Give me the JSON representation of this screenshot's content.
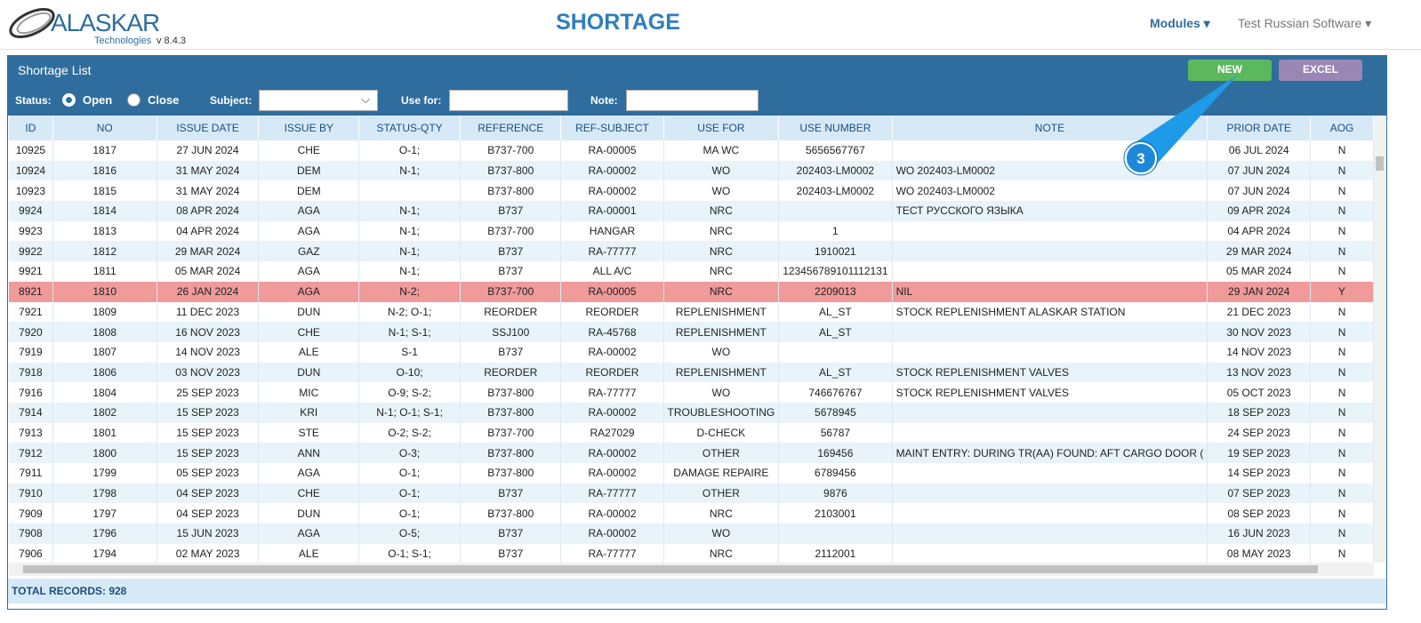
{
  "header": {
    "logo_name": "ALASKAR",
    "logo_sub": "Technologies",
    "version": "v 8.4.3",
    "title": "SHORTAGE",
    "nav": [
      "Modules",
      "Test Russian Software"
    ]
  },
  "panel": {
    "title": "Shortage List",
    "buttons": [
      "NEW",
      "EXCEL"
    ]
  },
  "filters": {
    "status_label": "Status:",
    "options": [
      "Open",
      "Close"
    ],
    "selected_option": 0,
    "subject_label": "Subject:",
    "use_for_label": "Use for:",
    "note_label": "Note:"
  },
  "table": {
    "columns": [
      "ID",
      "NO",
      "ISSUE DATE",
      "ISSUE BY",
      "STATUS-QTY",
      "REFERENCE",
      "REF-SUBJECT",
      "USE FOR",
      "USE NUMBER",
      "NOTE",
      "PRIOR DATE",
      "AOG"
    ],
    "rows": [
      {
        "cells": [
          "10925",
          "1817",
          "27 JUN 2024",
          "CHE",
          "O-1;",
          "B737-700",
          "RA-00005",
          "MA WC",
          "5656567767",
          null,
          "06 JUL 2024",
          "N"
        ]
      },
      {
        "cells": [
          "10924",
          "1816",
          "31 MAY 2024",
          "DEM",
          "N-1;",
          "B737-800",
          "RA-00002",
          "WO",
          "202403-LM0002",
          "WO 202403-LM0002",
          "07 JUN 2024",
          "N"
        ]
      },
      {
        "cells": [
          "10923",
          "1815",
          "31 MAY 2024",
          "DEM",
          null,
          "B737-800",
          "RA-00002",
          "WO",
          "202403-LM0002",
          "WO 202403-LM0002",
          "07 JUN 2024",
          "N"
        ]
      },
      {
        "cells": [
          "9924",
          "1814",
          "08 APR 2024",
          "AGA",
          "N-1;",
          "B737",
          "RA-00001",
          "NRC",
          null,
          "ТЕСТ РУССКОГО ЯЗЫКА",
          "09 APR 2024",
          "N"
        ]
      },
      {
        "cells": [
          "9923",
          "1813",
          "04 APR 2024",
          "AGA",
          "N-1;",
          "B737-700",
          "HANGAR",
          "NRC",
          "1",
          null,
          "04 APR 2024",
          "N"
        ]
      },
      {
        "cells": [
          "9922",
          "1812",
          "29 MAR 2024",
          "GAZ",
          "N-1;",
          "B737",
          "RA-77777",
          "NRC",
          "1910021",
          null,
          "29 MAR 2024",
          "N"
        ]
      },
      {
        "cells": [
          "9921",
          "1811",
          "05 MAR 2024",
          "AGA",
          "N-1;",
          "B737",
          "ALL A/C",
          "NRC",
          "123456789101112131",
          null,
          "05 MAR 2024",
          "N"
        ]
      },
      {
        "cells": [
          "8921",
          "1810",
          "26 JAN 2024",
          "AGA",
          "N-2;",
          "B737-700",
          "RA-00005",
          "NRC",
          "2209013",
          "NIL",
          "29 JAN 2024",
          "Y"
        ],
        "selected": true
      },
      {
        "cells": [
          "7921",
          "1809",
          "11 DEC 2023",
          "DUN",
          "N-2; O-1;",
          "REORDER",
          "REORDER",
          "REPLENISHMENT",
          "AL_ST",
          "STOCK REPLENISHMENT ALASKAR STATION",
          "21 DEC 2023",
          "N"
        ]
      },
      {
        "cells": [
          "7920",
          "1808",
          "16 NOV 2023",
          "CHE",
          "N-1; S-1;",
          "SSJ100",
          "RA-45768",
          "REPLENISHMENT",
          "AL_ST",
          null,
          "30 NOV 2023",
          "N"
        ]
      },
      {
        "cells": [
          "7919",
          "1807",
          "14 NOV 2023",
          "ALE",
          "S-1",
          "B737",
          "RA-00002",
          "WO",
          null,
          null,
          "14 NOV 2023",
          "N"
        ]
      },
      {
        "cells": [
          "7918",
          "1806",
          "03 NOV 2023",
          "DUN",
          "O-10;",
          "REORDER",
          "REORDER",
          "REPLENISHMENT",
          "AL_ST",
          "STOCK REPLENISHMENT VALVES",
          "13 NOV 2023",
          "N"
        ]
      },
      {
        "cells": [
          "7916",
          "1804",
          "25 SEP 2023",
          "MIC",
          "O-9; S-2;",
          "B737-800",
          "RA-77777",
          "WO",
          "746676767",
          "STOCK REPLENISHMENT VALVES",
          "05 OCT 2023",
          "N"
        ]
      },
      {
        "cells": [
          "7914",
          "1802",
          "15 SEP 2023",
          "KRI",
          "N-1; O-1; S-1;",
          "B737-800",
          "RA-00002",
          "TROUBLESHOOTING",
          "5678945",
          null,
          "18 SEP 2023",
          "N"
        ]
      },
      {
        "cells": [
          "7913",
          "1801",
          "15 SEP 2023",
          "STE",
          "O-2; S-2;",
          "B737-700",
          "RA27029",
          "D-CHECK",
          "56787",
          null,
          "24 SEP 2023",
          "N"
        ]
      },
      {
        "cells": [
          "7912",
          "1800",
          "15 SEP 2023",
          "ANN",
          "O-3;",
          "B737-800",
          "RA-00002",
          "OTHER",
          "169456",
          "MAINT ENTRY: DURING TR(AA) FOUND: AFT CARGO DOOR (",
          "19 SEP 2023",
          "N"
        ]
      },
      {
        "cells": [
          "7911",
          "1799",
          "05 SEP 2023",
          "AGA",
          "O-1;",
          "B737-800",
          "RA-00002",
          "DAMAGE REPAIRE",
          "6789456",
          null,
          "14 SEP 2023",
          "N"
        ]
      },
      {
        "cells": [
          "7910",
          "1798",
          "04 SEP 2023",
          "CHE",
          "O-1;",
          "B737",
          "RA-77777",
          "OTHER",
          "9876",
          null,
          "07 SEP 2023",
          "N"
        ]
      },
      {
        "cells": [
          "7909",
          "1797",
          "04 SEP 2023",
          "DUN",
          "O-1;",
          "B737-800",
          "RA-00002",
          "NRC",
          "2103001",
          null,
          "08 SEP 2023",
          "N"
        ]
      },
      {
        "cells": [
          "7908",
          "1796",
          "15 JUN 2023",
          "AGA",
          "O-5;",
          "B737",
          "RA-00002",
          "WO",
          null,
          null,
          "16 JUN 2023",
          "N"
        ]
      },
      {
        "cells": [
          "7906",
          "1794",
          "02 MAY 2023",
          "ALE",
          "O-1; S-1;",
          "B737",
          "RA-77777",
          "NRC",
          "2112001",
          null,
          "08 MAY 2023",
          "N"
        ]
      }
    ]
  },
  "footer": {
    "total": "TOTAL RECORDS: 928"
  },
  "annotation": {
    "label": "3"
  }
}
